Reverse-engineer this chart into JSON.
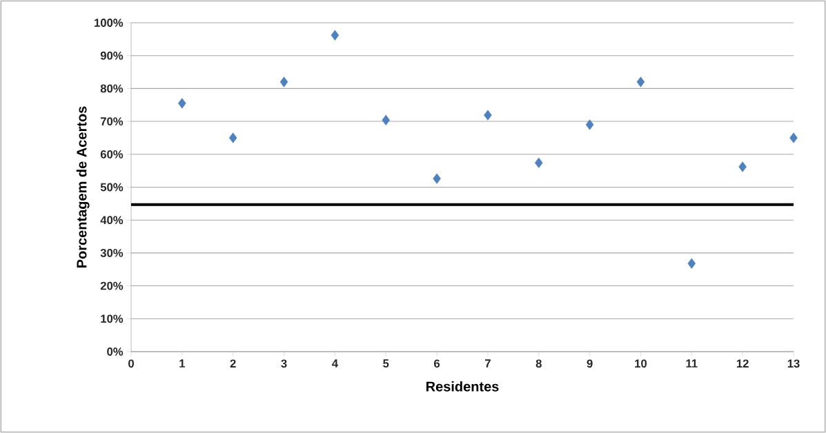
{
  "chart_data": {
    "type": "scatter",
    "xlabel": "Residentes",
    "ylabel": "Porcentagem de Acertos",
    "x": [
      1,
      2,
      3,
      4,
      5,
      6,
      7,
      8,
      9,
      10,
      11,
      12,
      13
    ],
    "series": [
      {
        "color": "#4f81bd",
        "values": [
          75.5,
          65,
          82,
          96.2,
          70.4,
          52.6,
          71.9,
          57.4,
          69,
          82,
          26.8,
          56.2,
          65
        ]
      }
    ],
    "xlim": [
      0,
      13
    ],
    "xticks": [
      0,
      1,
      2,
      3,
      4,
      5,
      6,
      7,
      8,
      9,
      10,
      11,
      12,
      13
    ],
    "ylim": [
      0,
      100
    ],
    "yticks": [
      {
        "value": 0,
        "label": "0%"
      },
      {
        "value": 10,
        "label": "10%"
      },
      {
        "value": 20,
        "label": "20%"
      },
      {
        "value": 30,
        "label": "30%"
      },
      {
        "value": 40,
        "label": "40%"
      },
      {
        "value": 50,
        "label": "50%"
      },
      {
        "value": 60,
        "label": "60%"
      },
      {
        "value": 70,
        "label": "70%"
      },
      {
        "value": 80,
        "label": "80%"
      },
      {
        "value": 90,
        "label": "90%"
      },
      {
        "value": 100,
        "label": "100%"
      }
    ],
    "ref_lines": [
      {
        "axis": "y",
        "value": 44.7,
        "color": "#000000"
      }
    ],
    "grid": "y",
    "marker": "diamond"
  }
}
